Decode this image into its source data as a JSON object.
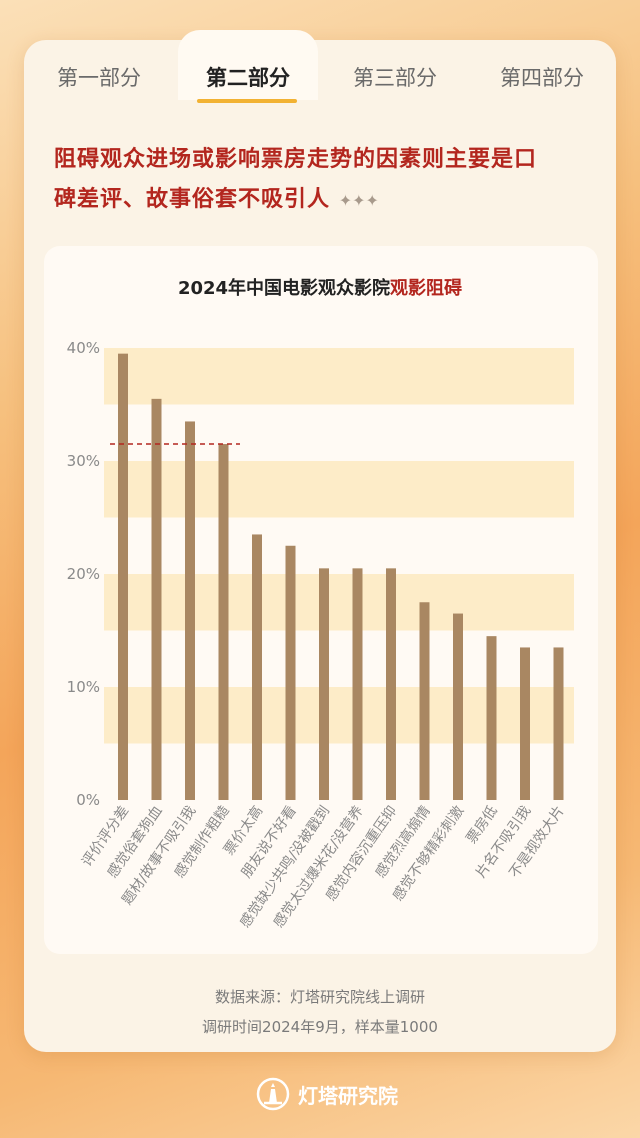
{
  "tabs": [
    {
      "label": "第一部分",
      "active": false
    },
    {
      "label": "第二部分",
      "active": true
    },
    {
      "label": "第三部分",
      "active": false
    },
    {
      "label": "第四部分",
      "active": false
    }
  ],
  "headline": {
    "line1": "阻碍观众进场或影响票房走势的因素则主要是口",
    "line2": "碑差评、故事俗套不吸引人",
    "sparkle": "✦✦✦"
  },
  "chart_data": {
    "type": "bar",
    "title_prefix": "2024年中国电影观众影院",
    "title_highlight": "观影阻碍",
    "categories": [
      "评价评分差",
      "感觉俗套狗血",
      "题材/故事不吸引我",
      "感觉制作粗糙",
      "票价太高",
      "朋友说不好看",
      "感觉缺少共鸣/没被戳到",
      "感觉太过爆米花/没营养",
      "感觉内容沉重压抑",
      "感觉烈高煽情",
      "感觉不够精彩刺激",
      "票房低",
      "片名不吸引我",
      "不是视效大片"
    ],
    "values": [
      39.5,
      35.5,
      33.5,
      31.5,
      23.5,
      22.5,
      20.5,
      20.5,
      20.5,
      17.5,
      16.5,
      14.5,
      13.5,
      13.5
    ],
    "yticks": [
      "0%",
      "10%",
      "20%",
      "30%",
      "40%"
    ],
    "ylim": [
      0,
      40
    ],
    "bar_color": "#a98762",
    "band_color": "#fdecc8",
    "reference_line_value": 31.5,
    "reference_line_color": "#b3261e"
  },
  "footer": {
    "source": "数据来源：灯塔研究院线上调研",
    "survey": "调研时间2024年9月，样本量1000"
  },
  "brand": {
    "name": "灯塔研究院"
  }
}
